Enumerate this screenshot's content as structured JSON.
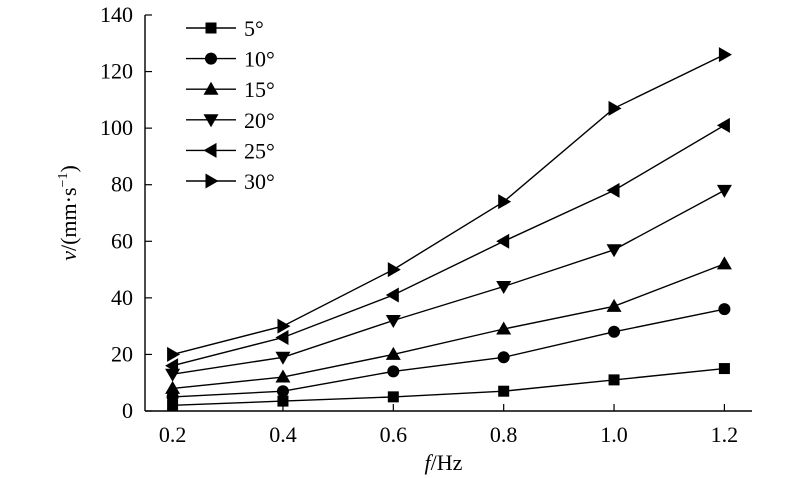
{
  "chart_data": {
    "type": "line",
    "title": "",
    "xlabel": {
      "var": "f",
      "unit": "/Hz"
    },
    "ylabel": {
      "var": "v",
      "unit": "/(mm·s",
      "sup": "−1",
      "close": ")"
    },
    "xlim": [
      0.15,
      1.25
    ],
    "ylim": [
      0,
      140
    ],
    "xticks": [
      0.2,
      0.4,
      0.6,
      0.8,
      1.0,
      1.2
    ],
    "xtick_labels": [
      "0.2",
      "0.4",
      "0.6",
      "0.8",
      "1.0",
      "1.2"
    ],
    "yticks": [
      0,
      20,
      40,
      60,
      80,
      100,
      120,
      140
    ],
    "ytick_labels": [
      "0",
      "20",
      "40",
      "60",
      "80",
      "100",
      "120",
      "140"
    ],
    "grid": false,
    "legend_position": "top-left",
    "x": [
      0.2,
      0.4,
      0.6,
      0.8,
      1.0,
      1.2
    ],
    "series": [
      {
        "name": "5°",
        "marker": "square",
        "values": [
          2,
          3.5,
          5,
          7,
          11,
          15
        ]
      },
      {
        "name": "10°",
        "marker": "circle",
        "values": [
          5,
          7,
          14,
          19,
          28,
          36
        ]
      },
      {
        "name": "15°",
        "marker": "triangle-up",
        "values": [
          8,
          12,
          20,
          29,
          37,
          52
        ]
      },
      {
        "name": "20°",
        "marker": "triangle-down",
        "values": [
          13,
          19,
          32,
          44,
          57,
          78
        ]
      },
      {
        "name": "25°",
        "marker": "triangle-left",
        "values": [
          16,
          26,
          41,
          60,
          78,
          101
        ]
      },
      {
        "name": "30°",
        "marker": "triangle-right",
        "values": [
          20,
          30,
          50,
          74,
          107,
          126
        ]
      }
    ],
    "colors": {
      "line": "#000000",
      "marker": "#000000"
    }
  }
}
